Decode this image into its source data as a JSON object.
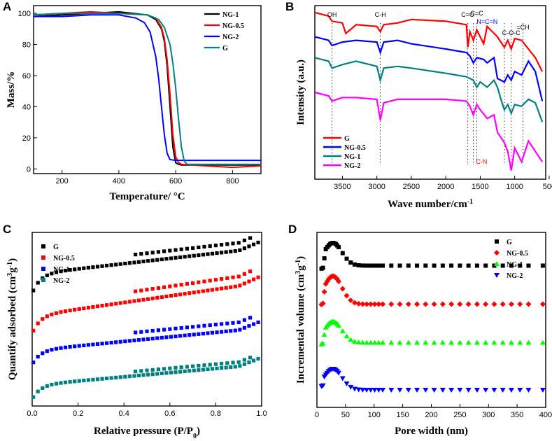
{
  "chart_data": [
    {
      "panel": "A",
      "type": "line",
      "xlabel": "Temperature/ °C",
      "ylabel": "Mass/%",
      "xlim": [
        100,
        900
      ],
      "ylim": [
        -3,
        105
      ],
      "xticks": [
        200,
        400,
        600,
        800
      ],
      "yticks": [
        0,
        20,
        40,
        60,
        80,
        100
      ],
      "legend_position": "top-right",
      "series": [
        {
          "name": "NG-1",
          "color": "#000000",
          "x": [
            100,
            200,
            300,
            400,
            500,
            530,
            550,
            560,
            570,
            580,
            590,
            600,
            610,
            620,
            700,
            800,
            900
          ],
          "y": [
            98,
            99,
            100,
            101,
            99,
            96,
            90,
            82,
            66,
            40,
            14,
            4,
            3,
            2.5,
            2.5,
            2.5,
            2.5
          ]
        },
        {
          "name": "NG-0.5",
          "color": "#ff0000",
          "x": [
            100,
            200,
            300,
            400,
            500,
            530,
            550,
            560,
            570,
            580,
            590,
            600,
            610,
            620,
            700,
            800,
            900
          ],
          "y": [
            99,
            100,
            101,
            100,
            99,
            97,
            91,
            84,
            70,
            48,
            22,
            8,
            4,
            3,
            2,
            1,
            2
          ]
        },
        {
          "name": "NG-2",
          "color": "#0000ff",
          "x": [
            100,
            200,
            300,
            400,
            460,
            490,
            510,
            530,
            540,
            550,
            560,
            570,
            580,
            600,
            700,
            800,
            900
          ],
          "y": [
            98,
            98,
            99,
            99,
            97,
            94,
            88,
            72,
            58,
            40,
            22,
            10,
            6,
            5.5,
            5.5,
            5.5,
            5.5
          ]
        },
        {
          "name": "G",
          "color": "#008080",
          "x": [
            100,
            200,
            300,
            400,
            500,
            540,
            560,
            580,
            590,
            600,
            610,
            620,
            630,
            640,
            700,
            800,
            900
          ],
          "y": [
            99,
            100,
            100,
            100,
            99,
            96,
            91,
            80,
            68,
            52,
            32,
            14,
            5,
            3,
            3,
            3,
            3
          ]
        }
      ]
    },
    {
      "panel": "B",
      "type": "line",
      "xlabel": "Wave number/cm",
      "xlabel_sup": "-1",
      "ylabel": "Intensity (a.u.)",
      "xlim": [
        3900,
        550
      ],
      "ylim": [
        0,
        10
      ],
      "xticks": [
        3500,
        3000,
        2500,
        2000,
        1500,
        1000,
        500
      ],
      "legend_position": "bottom-left",
      "annotations": [
        {
          "text": "OH",
          "x": 3650,
          "color": "#000000"
        },
        {
          "text": "C-H",
          "x": 2950,
          "color": "#000000"
        },
        {
          "text": "C=O",
          "x": 1680,
          "color": "#000000"
        },
        {
          "text": "C=C",
          "x": 1550,
          "color": "#000000"
        },
        {
          "text": "N=C=N",
          "x": 1400,
          "color": "#0000ff"
        },
        {
          "text": "C-O-C",
          "x": 1050,
          "color": "#000000"
        },
        {
          "text": "=CH",
          "x": 880,
          "color": "#000000"
        },
        {
          "text": "C-N",
          "x": 1480,
          "color": "#ff0000"
        }
      ],
      "marker_lines": [
        3650,
        2950,
        1680,
        1600,
        1550,
        1150,
        1050,
        880
      ],
      "series": [
        {
          "name": "G",
          "color": "#ff0000",
          "x": [
            3900,
            3700,
            3650,
            3500,
            3450,
            3300,
            3000,
            2950,
            2900,
            2700,
            2500,
            2000,
            1700,
            1680,
            1650,
            1600,
            1550,
            1450,
            1400,
            1250,
            1150,
            1100,
            1050,
            1000,
            900,
            700,
            600
          ],
          "y": [
            9.6,
            9.4,
            9.1,
            9.0,
            8.4,
            8.9,
            8.8,
            8.5,
            8.9,
            9.0,
            9.2,
            9.1,
            8.9,
            7.6,
            8.5,
            8.0,
            8.6,
            7.8,
            8.8,
            8.2,
            7.6,
            8.0,
            7.5,
            8.1,
            8.0,
            7.0,
            6.2
          ]
        },
        {
          "name": "NG-0.5",
          "color": "#0000ff",
          "x": [
            3900,
            3700,
            3650,
            3500,
            3300,
            3000,
            2950,
            2900,
            2700,
            2500,
            2000,
            1700,
            1650,
            1600,
            1550,
            1450,
            1400,
            1300,
            1250,
            1150,
            1100,
            1050,
            1000,
            900,
            800,
            700,
            600
          ],
          "y": [
            8.2,
            8.0,
            7.7,
            7.9,
            8.0,
            7.9,
            7.3,
            7.9,
            8.0,
            7.8,
            7.5,
            7.3,
            7.1,
            6.7,
            7.0,
            6.9,
            6.7,
            7.0,
            5.8,
            5.6,
            6.0,
            5.7,
            6.2,
            6.0,
            6.8,
            6.2,
            4.5
          ]
        },
        {
          "name": "NG-1",
          "color": "#008080",
          "x": [
            3900,
            3700,
            3650,
            3500,
            3300,
            3000,
            2950,
            2900,
            2700,
            2500,
            2000,
            1700,
            1600,
            1550,
            1500,
            1400,
            1300,
            1250,
            1200,
            1150,
            1100,
            1050,
            1000,
            900,
            800,
            700,
            600
          ],
          "y": [
            7.0,
            6.8,
            6.4,
            6.6,
            6.8,
            6.5,
            5.7,
            6.4,
            6.5,
            6.4,
            6.1,
            5.9,
            5.7,
            5.3,
            5.6,
            5.3,
            5.7,
            5.3,
            4.6,
            4.0,
            4.3,
            3.8,
            4.3,
            4.2,
            4.6,
            4.4,
            3.3
          ]
        },
        {
          "name": "NG-2",
          "color": "#ff00ff",
          "x": [
            3900,
            3700,
            3650,
            3500,
            3300,
            3000,
            2950,
            2900,
            2700,
            2500,
            2000,
            1700,
            1650,
            1600,
            1550,
            1500,
            1400,
            1300,
            1250,
            1150,
            1100,
            1050,
            1000,
            900,
            800,
            700,
            600
          ],
          "y": [
            5.0,
            4.8,
            4.5,
            4.7,
            4.7,
            4.6,
            3.4,
            4.4,
            4.6,
            4.6,
            4.6,
            4.5,
            4.2,
            3.7,
            4.3,
            4.0,
            3.5,
            3.7,
            2.7,
            2.1,
            1.6,
            0.5,
            1.8,
            1.0,
            2.2,
            1.6,
            1.0
          ]
        }
      ]
    },
    {
      "panel": "C",
      "type": "scatter",
      "xlabel": "Relative pressure (P/P",
      "xlabel_sub": "0",
      "xlabel_close": ")",
      "ylabel": "Quantify adsorbed (cm",
      "ylabel_sup1": "3",
      "ylabel_mid": "g",
      "ylabel_sup2": "-1",
      "ylabel_close": ")",
      "xlim": [
        0,
        1.0
      ],
      "ylim": [
        0,
        10
      ],
      "xticks": [
        0.0,
        0.2,
        0.4,
        0.6,
        0.8,
        1.0
      ],
      "legend_position": "top-left",
      "series": [
        {
          "name": "G",
          "color": "#000000",
          "marker": "square",
          "base": 6.5,
          "rise": 1.1,
          "slope": 1.5,
          "hyst": 0.45
        },
        {
          "name": "NG-0.5",
          "color": "#ff0000",
          "marker": "square",
          "base": 4.2,
          "rise": 1.0,
          "slope": 1.9,
          "hyst": 0.55
        },
        {
          "name": "NG-1",
          "color": "#0000ff",
          "marker": "square",
          "base": 2.4,
          "rise": 0.8,
          "slope": 1.3,
          "hyst": 0.45
        },
        {
          "name": "NG-2",
          "color": "#008080",
          "marker": "square",
          "base": 0.4,
          "rise": 0.8,
          "slope": 1.2,
          "hyst": 0.25
        }
      ]
    },
    {
      "panel": "D",
      "type": "scatter",
      "xlabel": "Pore width (nm)",
      "ylabel": "Incremental volume (cm",
      "ylabel_sup1": "3",
      "ylabel_mid": "g",
      "ylabel_sup2": "-1",
      "ylabel_close": ")",
      "xlim": [
        0,
        400
      ],
      "ylim": [
        0,
        10
      ],
      "xticks": [
        0,
        50,
        100,
        150,
        200,
        250,
        300,
        350,
        400
      ],
      "legend_position": "top-right",
      "series": [
        {
          "name": "G",
          "color": "#000000",
          "marker": "square",
          "baseline": 8.1,
          "peak": 1.3,
          "dip": 0.4
        },
        {
          "name": "NG-0.5",
          "color": "#ff0000",
          "marker": "diamond",
          "baseline": 5.9,
          "peak": 1.6,
          "dip": 0.3
        },
        {
          "name": "NG-1",
          "color": "#00ff00",
          "marker": "triangle-up",
          "baseline": 3.7,
          "peak": 1.2,
          "dip": 0.3
        },
        {
          "name": "NG-2",
          "color": "#0000ff",
          "marker": "triangle-down",
          "baseline": 1.0,
          "peak": 1.2,
          "dip": 0.0
        }
      ]
    }
  ],
  "panel_letters": [
    "A",
    "B",
    "C",
    "D"
  ]
}
